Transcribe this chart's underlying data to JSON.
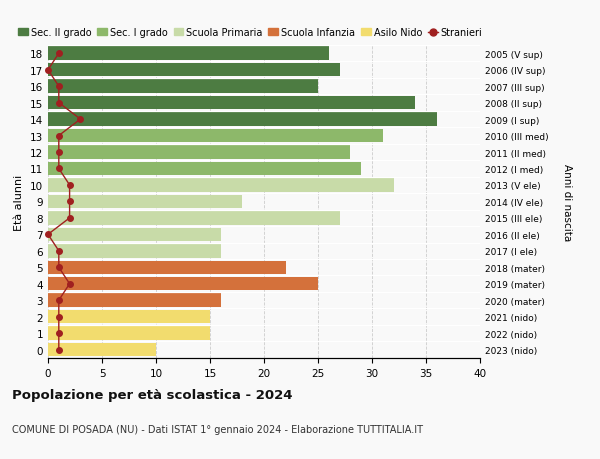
{
  "ages": [
    0,
    1,
    2,
    3,
    4,
    5,
    6,
    7,
    8,
    9,
    10,
    11,
    12,
    13,
    14,
    15,
    16,
    17,
    18
  ],
  "bar_values": [
    10,
    15,
    15,
    16,
    25,
    22,
    16,
    16,
    27,
    18,
    32,
    29,
    28,
    31,
    36,
    34,
    25,
    27,
    26
  ],
  "right_labels": [
    "2023 (nido)",
    "2022 (nido)",
    "2021 (nido)",
    "2020 (mater)",
    "2019 (mater)",
    "2018 (mater)",
    "2017 (I ele)",
    "2016 (II ele)",
    "2015 (III ele)",
    "2014 (IV ele)",
    "2013 (V ele)",
    "2012 (I med)",
    "2011 (II med)",
    "2010 (III med)",
    "2009 (I sup)",
    "2008 (II sup)",
    "2007 (III sup)",
    "2006 (IV sup)",
    "2005 (V sup)"
  ],
  "stranieri_values": [
    1,
    1,
    1,
    1,
    2,
    1,
    1,
    0,
    2,
    2,
    2,
    1,
    1,
    1,
    3,
    1,
    1,
    0,
    1
  ],
  "bar_color_per_age": [
    "#f2dc6e",
    "#f2dc6e",
    "#f2dc6e",
    "#d4713b",
    "#d4713b",
    "#d4713b",
    "#c8dba8",
    "#c8dba8",
    "#c8dba8",
    "#c8dba8",
    "#c8dba8",
    "#8db86a",
    "#8db86a",
    "#8db86a",
    "#4d7c42",
    "#4d7c42",
    "#4d7c42",
    "#4d7c42",
    "#4d7c42"
  ],
  "stranieri_color": "#a02020",
  "legend_labels": [
    "Sec. II grado",
    "Sec. I grado",
    "Scuola Primaria",
    "Scuola Infanzia",
    "Asilo Nido",
    "Stranieri"
  ],
  "legend_colors": [
    "#4d7c42",
    "#8db86a",
    "#c8dba8",
    "#d4713b",
    "#f2dc6e",
    "#a02020"
  ],
  "ylabel": "Età alunni",
  "right_ylabel": "Anni di nascita",
  "title": "Popolazione per età scolastica - 2024",
  "subtitle": "COMUNE DI POSADA (NU) - Dati ISTAT 1° gennaio 2024 - Elaborazione TUTTITALIA.IT",
  "xlim": [
    0,
    40
  ],
  "background_color": "#f9f9f9",
  "grid_color": "#cccccc"
}
